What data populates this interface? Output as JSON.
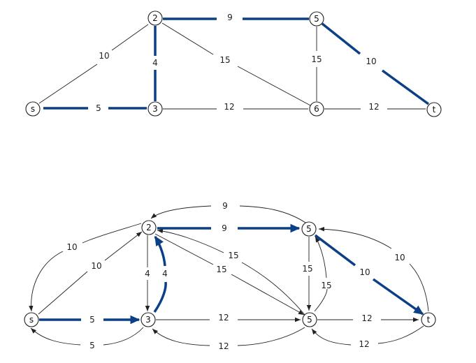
{
  "colors": {
    "highlight": "#0b3f86",
    "edge": "#222222",
    "node_fill": "#ffffff"
  },
  "top_graph": {
    "nodes": [
      {
        "id": "s",
        "label": "s"
      },
      {
        "id": "2",
        "label": "2"
      },
      {
        "id": "3",
        "label": "3"
      },
      {
        "id": "5",
        "label": "5"
      },
      {
        "id": "6",
        "label": "6"
      },
      {
        "id": "t",
        "label": "t"
      }
    ],
    "edges": [
      {
        "from": "s",
        "to": "2",
        "label": "10",
        "highlight": false
      },
      {
        "from": "s",
        "to": "3",
        "label": "5",
        "highlight": true
      },
      {
        "from": "2",
        "to": "3",
        "label": "4",
        "highlight": true
      },
      {
        "from": "2",
        "to": "5",
        "label": "9",
        "highlight": true
      },
      {
        "from": "2",
        "to": "6",
        "label": "15",
        "highlight": false
      },
      {
        "from": "3",
        "to": "6",
        "label": "12",
        "highlight": false
      },
      {
        "from": "5",
        "to": "6",
        "label": "15",
        "highlight": false
      },
      {
        "from": "5",
        "to": "t",
        "label": "10",
        "highlight": true
      },
      {
        "from": "6",
        "to": "t",
        "label": "12",
        "highlight": false
      }
    ]
  },
  "bottom_graph": {
    "nodes": [
      {
        "id": "s",
        "label": "s"
      },
      {
        "id": "2",
        "label": "2"
      },
      {
        "id": "3",
        "label": "3"
      },
      {
        "id": "5a",
        "label": "5"
      },
      {
        "id": "5b",
        "label": "5"
      },
      {
        "id": "t",
        "label": "t"
      }
    ],
    "edges": [
      {
        "from": "5a",
        "to": "2",
        "label": "9",
        "highlight": false
      },
      {
        "from": "2",
        "to": "5a",
        "label": "9",
        "highlight": true
      },
      {
        "from": "2",
        "to": "s",
        "label": "10",
        "highlight": false
      },
      {
        "from": "s",
        "to": "2",
        "label": "10",
        "highlight": false
      },
      {
        "from": "2",
        "to": "3",
        "label": "4",
        "highlight": false
      },
      {
        "from": "3",
        "to": "2",
        "label": "4",
        "highlight": true
      },
      {
        "from": "5b",
        "to": "2",
        "label": "15",
        "highlight": false
      },
      {
        "from": "2",
        "to": "5b",
        "label": "15",
        "highlight": false
      },
      {
        "from": "5a",
        "to": "5b",
        "label": "15",
        "highlight": false
      },
      {
        "from": "5b",
        "to": "5a",
        "label": "15",
        "highlight": false
      },
      {
        "from": "5a",
        "to": "t",
        "label": "10",
        "highlight": true
      },
      {
        "from": "t",
        "to": "5a",
        "label": "10",
        "highlight": false
      },
      {
        "from": "s",
        "to": "3",
        "label": "5",
        "highlight": true
      },
      {
        "from": "3",
        "to": "s",
        "label": "5",
        "highlight": false
      },
      {
        "from": "3",
        "to": "5b",
        "label": "12",
        "highlight": false
      },
      {
        "from": "5b",
        "to": "3",
        "label": "12",
        "highlight": false
      },
      {
        "from": "5b",
        "to": "t",
        "label": "12",
        "highlight": false
      },
      {
        "from": "t",
        "to": "5b",
        "label": "12",
        "highlight": false
      }
    ]
  }
}
